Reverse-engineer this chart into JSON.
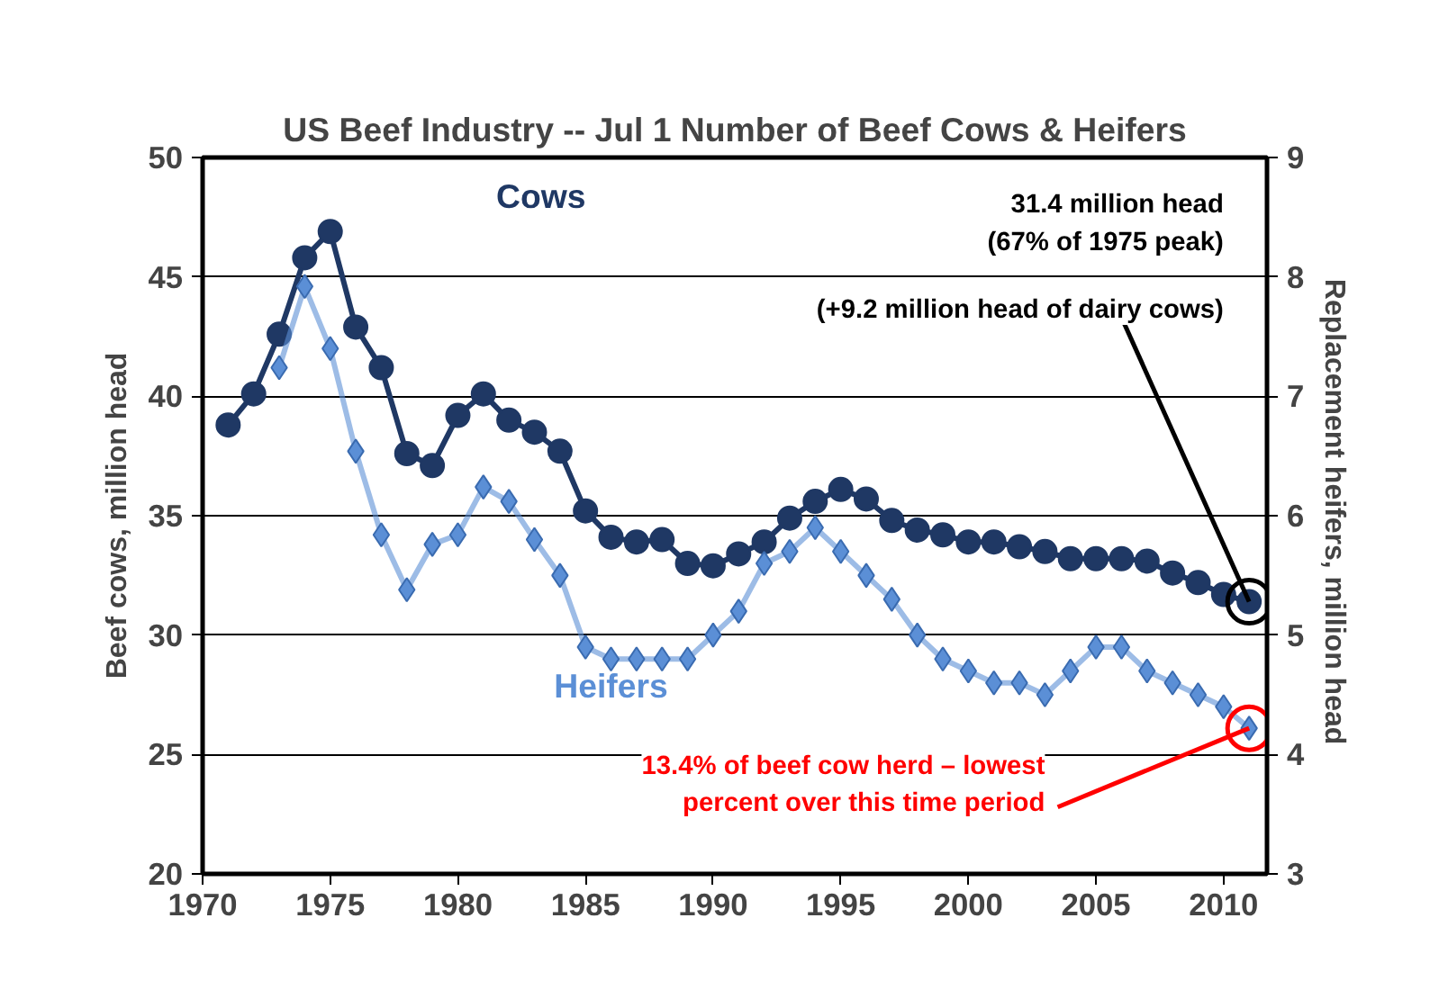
{
  "chart_data": {
    "type": "line",
    "title": "US Beef Industry -- Jul 1 Number of Beef Cows & Heifers",
    "ylabel": "Beef cows, million head",
    "y2label": "Replacement  heifers, million head",
    "x": [
      1971,
      1972,
      1973,
      1974,
      1975,
      1976,
      1977,
      1978,
      1979,
      1980,
      1981,
      1982,
      1983,
      1984,
      1985,
      1986,
      1987,
      1988,
      1989,
      1990,
      1991,
      1992,
      1993,
      1994,
      1995,
      1996,
      1997,
      1998,
      1999,
      2000,
      2001,
      2002,
      2003,
      2004,
      2005,
      2006,
      2007,
      2008,
      2009,
      2010,
      2011
    ],
    "series": [
      {
        "name": "Cows",
        "color": "#1f3864",
        "marker": "circle",
        "values": [
          38.8,
          40.1,
          42.6,
          45.8,
          46.9,
          42.9,
          41.2,
          37.6,
          37.1,
          39.2,
          40.1,
          39.0,
          38.5,
          37.7,
          35.2,
          34.1,
          33.9,
          34.0,
          33.0,
          32.9,
          33.4,
          33.9,
          34.9,
          35.6,
          36.1,
          35.7,
          34.8,
          34.4,
          34.2,
          33.9,
          33.9,
          33.7,
          33.5,
          33.2,
          33.2,
          33.2,
          33.1,
          32.6,
          32.2,
          31.7,
          31.4
        ]
      },
      {
        "name": "Heifers",
        "color": "#5b8fd6",
        "marker": "diamond",
        "axis": "y2",
        "values": [
          null,
          null,
          7.24,
          7.92,
          7.4,
          6.54,
          5.84,
          5.38,
          5.76,
          5.84,
          6.24,
          6.12,
          5.8,
          5.5,
          4.9,
          4.8,
          4.8,
          4.8,
          4.8,
          5.0,
          5.2,
          5.6,
          5.7,
          5.9,
          5.7,
          5.5,
          5.3,
          5.0,
          4.8,
          4.7,
          4.6,
          4.6,
          4.5,
          4.7,
          4.9,
          4.9,
          4.7,
          4.6,
          4.5,
          4.4,
          4.22
        ]
      }
    ],
    "xlim": [
      1970,
      2011.7
    ],
    "xticks": [
      1970,
      1975,
      1980,
      1985,
      1990,
      1995,
      2000,
      2005,
      2010
    ],
    "ylim": [
      20,
      50
    ],
    "yticks": [
      20,
      25,
      30,
      35,
      40,
      45,
      50
    ],
    "y2lim": [
      3,
      9
    ],
    "y2ticks": [
      3,
      4,
      5,
      6,
      7,
      8,
      9
    ],
    "grid": "y",
    "line_style": "solid",
    "annotations": [
      "31.4 million head\n(67% of 1975 peak)",
      {
        "text": "(+9.2 million head of dairy cows)",
        "x": 2011,
        "y": 31.4
      },
      {
        "text": "13.4% of beef cow herd – lowest\npercent over this time period",
        "x": 2011,
        "y": 26.1
      }
    ]
  }
}
